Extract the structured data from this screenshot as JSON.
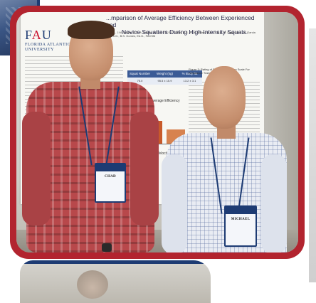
{
  "poster": {
    "title_line1": "...mparison of Average Efficiency Between Experienced and",
    "title_line2": "Novice Squatters During High Intensity Squats.",
    "authors": "...S., J.W.N., J.M. Quiller, B.S., A. Kleiner, B.S., C.T.C.S.C. Zittler, B.S., R. K. Nikias, M.S., J. B.S., B. Fager, M.S., A. Garcia Montes, Ph.D., B.S. Gomes, Ed.D., FACSM",
    "logo_mark_main": "F",
    "logo_mark_accent": "A",
    "logo_mark_end": "U",
    "logo_line1": "FLORIDA ATLANTIC",
    "logo_line2": "UNIVERSITY",
    "table": {
      "headers": [
        "Squat Number",
        "Weight (kg)",
        "% Body fat"
      ],
      "row": [
        "75.0",
        "95.5 ± 15.9",
        "13.2 ± 3.1"
      ]
    },
    "chart_title": "Average Efficiency",
    "chart2_title": "Velocity",
    "right_title": "Figure 3: Rating of Perceived Exertion Scale For Resistance Training"
  },
  "badges": {
    "left_name": "CHAD",
    "right_name": "MICHAEL"
  },
  "colors": {
    "frame": "#b2242f",
    "navy": "#1d3b73"
  }
}
